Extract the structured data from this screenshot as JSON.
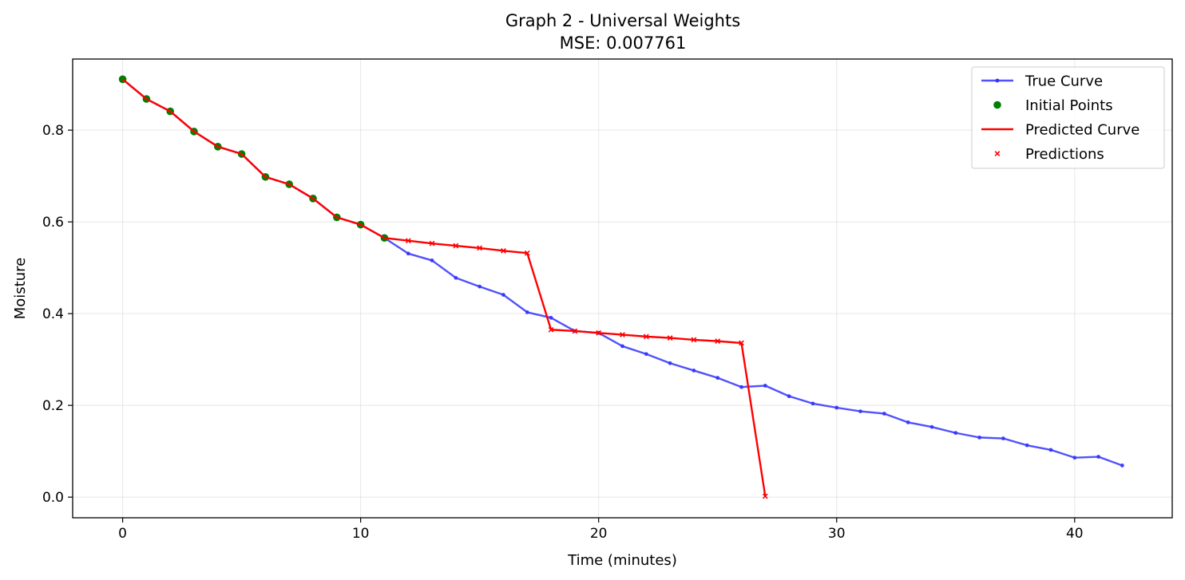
{
  "chart_data": {
    "type": "line",
    "title": "Graph 2 - Universal Weights",
    "subtitle": "MSE: 0.007761",
    "xlabel": "Time (minutes)",
    "ylabel": "Moisture",
    "xlim": [
      -2.1,
      44.1
    ],
    "ylim": [
      -0.045,
      0.955
    ],
    "xticks": [
      0,
      10,
      20,
      30,
      40
    ],
    "yticks": [
      0.0,
      0.2,
      0.4,
      0.6,
      0.8
    ],
    "xtick_labels": [
      "0",
      "10",
      "20",
      "30",
      "40"
    ],
    "ytick_labels": [
      "0.0",
      "0.2",
      "0.4",
      "0.6",
      "0.8"
    ],
    "grid": true,
    "legend_position": "top-right",
    "series": [
      {
        "name": "True Curve",
        "color": "#3333ff",
        "style": "line-dot",
        "x": [
          0,
          1,
          2,
          3,
          4,
          5,
          6,
          7,
          8,
          9,
          10,
          11,
          12,
          13,
          14,
          15,
          16,
          17,
          18,
          19,
          20,
          21,
          22,
          23,
          24,
          25,
          26,
          27,
          28,
          29,
          30,
          31,
          32,
          33,
          34,
          35,
          36,
          37,
          38,
          39,
          40,
          41,
          42
        ],
        "y": [
          0.911,
          0.868,
          0.841,
          0.797,
          0.764,
          0.748,
          0.698,
          0.682,
          0.651,
          0.61,
          0.594,
          0.565,
          0.531,
          0.516,
          0.478,
          0.459,
          0.441,
          0.403,
          0.391,
          0.362,
          0.358,
          0.329,
          0.312,
          0.292,
          0.276,
          0.26,
          0.24,
          0.243,
          0.22,
          0.204,
          0.195,
          0.187,
          0.182,
          0.163,
          0.153,
          0.14,
          0.13,
          0.128,
          0.113,
          0.103,
          0.086,
          0.088,
          0.069
        ]
      },
      {
        "name": "Initial Points",
        "color": "#008000",
        "style": "marker-circle",
        "x": [
          0,
          1,
          2,
          3,
          4,
          5,
          6,
          7,
          8,
          9,
          10,
          11
        ],
        "y": [
          0.911,
          0.868,
          0.841,
          0.797,
          0.764,
          0.748,
          0.698,
          0.682,
          0.651,
          0.61,
          0.594,
          0.565
        ]
      },
      {
        "name": "Predicted Curve",
        "color": "#ff0000",
        "style": "line",
        "x": [
          0,
          1,
          2,
          3,
          4,
          5,
          6,
          7,
          8,
          9,
          10,
          11,
          12,
          13,
          14,
          15,
          16,
          17,
          18,
          19,
          20,
          21,
          22,
          23,
          24,
          25,
          26,
          27
        ],
        "y": [
          0.911,
          0.868,
          0.841,
          0.797,
          0.764,
          0.748,
          0.698,
          0.682,
          0.651,
          0.61,
          0.594,
          0.565,
          0.559,
          0.553,
          0.548,
          0.543,
          0.537,
          0.532,
          0.365,
          0.362,
          0.358,
          0.354,
          0.35,
          0.347,
          0.343,
          0.34,
          0.336,
          0.002
        ]
      },
      {
        "name": "Predictions",
        "color": "#ff0000",
        "style": "marker-x",
        "x": [
          12,
          13,
          14,
          15,
          16,
          17,
          18,
          19,
          20,
          21,
          22,
          23,
          24,
          25,
          26,
          27
        ],
        "y": [
          0.559,
          0.553,
          0.548,
          0.543,
          0.537,
          0.532,
          0.365,
          0.362,
          0.358,
          0.354,
          0.35,
          0.347,
          0.343,
          0.34,
          0.336,
          0.002
        ]
      }
    ]
  }
}
